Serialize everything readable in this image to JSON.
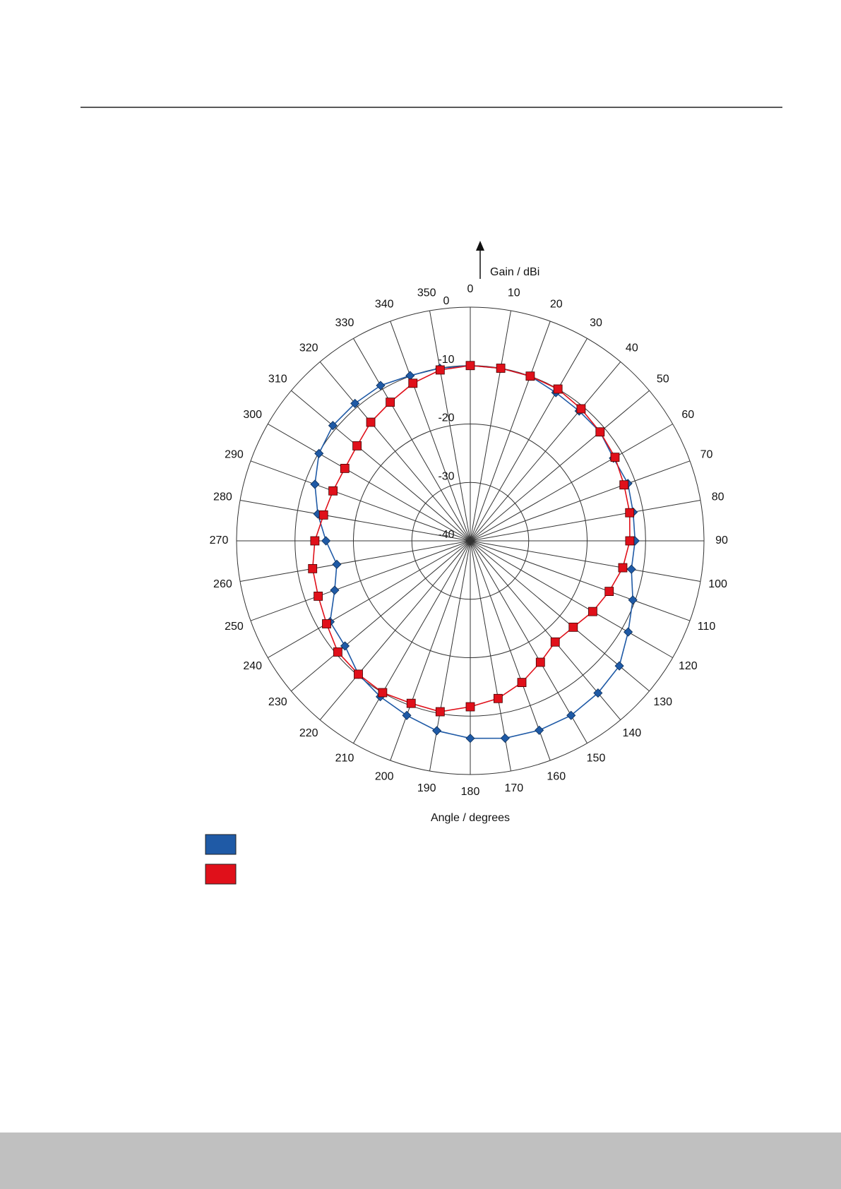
{
  "chart_data": {
    "type": "polar",
    "x": [
      0,
      10,
      20,
      30,
      40,
      50,
      60,
      70,
      80,
      90,
      100,
      110,
      120,
      130,
      140,
      150,
      160,
      170,
      180,
      190,
      200,
      210,
      220,
      230,
      240,
      250,
      260,
      270,
      280,
      290,
      300,
      310,
      320,
      330,
      340,
      350
    ],
    "xlabel": "Angle / degrees",
    "ylabel": "Gain / dBi",
    "ylim": [
      -40,
      0
    ],
    "yticks": [
      -40,
      -30,
      -20,
      -10,
      0
    ],
    "series": [
      {
        "color": "#1f5aa6",
        "marker": "diamond",
        "values": [
          -10,
          -10,
          -10,
          -10.7,
          -11,
          -11,
          -11.7,
          -11.3,
          -11.7,
          -11.8,
          -12,
          -10.4,
          -8.8,
          -6.7,
          -6,
          -5.5,
          -5.5,
          -5.7,
          -6.2,
          -7,
          -8.2,
          -9.2,
          -10.2,
          -12,
          -12.3,
          -15.3,
          -16.8,
          -15.3,
          -13.5,
          -11.7,
          -10.1,
          -9.3,
          -9.3,
          -9.3,
          -9.9,
          -10
        ]
      },
      {
        "color": "#e0101a",
        "marker": "square",
        "values": [
          -10,
          -10,
          -10,
          -10,
          -10.5,
          -11,
          -11.4,
          -12,
          -12.3,
          -12.7,
          -13.5,
          -14.7,
          -15.8,
          -17,
          -17.4,
          -16,
          -14.2,
          -12.6,
          -11.6,
          -10.3,
          -10.4,
          -10,
          -10.2,
          -10.4,
          -11.6,
          -12.3,
          -12.6,
          -13.4,
          -14.5,
          -15,
          -15.2,
          -14.7,
          -13.5,
          -12.6,
          -11.3,
          -10.3
        ]
      }
    ]
  }
}
